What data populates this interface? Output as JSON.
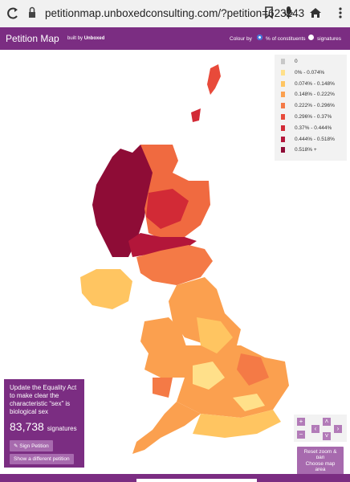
{
  "browser": {
    "url": "petitionmap.unboxedconsulting.com/?petition=623243"
  },
  "header": {
    "title": "Petition Map",
    "built_by": "built by",
    "brand": "Unboxed",
    "colour_by": "Colour by",
    "options": [
      "% of constituents",
      "signatures"
    ]
  },
  "legend": [
    {
      "label": "0",
      "color": "#c8c8c8"
    },
    {
      "label": "0% - 0.074%",
      "color": "#ffe08a"
    },
    {
      "label": "0.074% - 0.148%",
      "color": "#ffc561"
    },
    {
      "label": "0.148% - 0.222%",
      "color": "#fba04f"
    },
    {
      "label": "0.222% - 0.296%",
      "color": "#f47a46"
    },
    {
      "label": "0.296% - 0.37%",
      "color": "#e84a3a"
    },
    {
      "label": "0.37% - 0.444%",
      "color": "#d22a36"
    },
    {
      "label": "0.444% - 0.518%",
      "color": "#b3163a"
    },
    {
      "label": "0.518% +",
      "color": "#8e0c36"
    }
  ],
  "petition": {
    "title": "Update the Equality Act to make clear the characteristic “sex” is biological sex",
    "count": "83,738",
    "count_unit": "signatures",
    "sign_button": "Sign Petition",
    "other_button": "Show a different petition"
  },
  "controls": {
    "zoom_in": "+",
    "zoom_out": "−",
    "reset": "Reset zoom & pan",
    "choose_area": "Choose map area"
  }
}
